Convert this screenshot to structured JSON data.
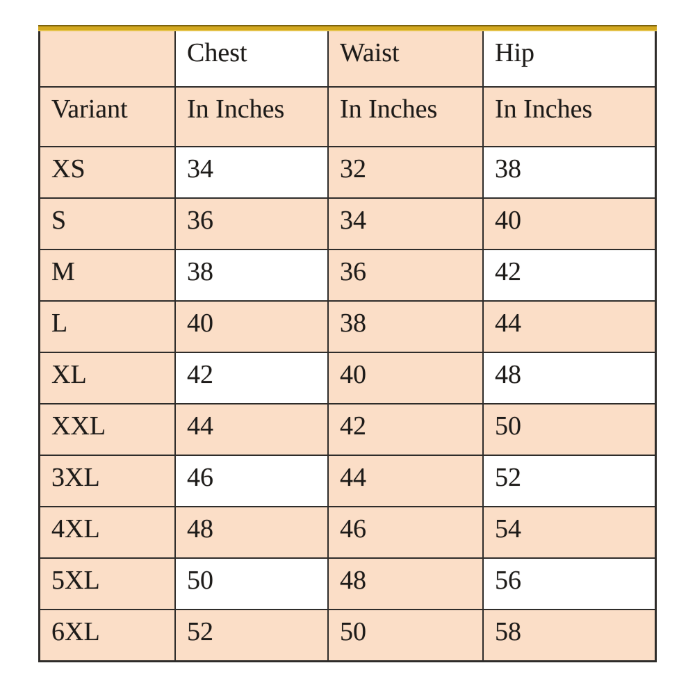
{
  "colors": {
    "peach": "#fbdec7",
    "white": "#ffffff",
    "gold_band": "#d3a81f",
    "gold_band_dark_edge": "#7c630e",
    "border": "#2e2c2a",
    "text": "#1d1b19",
    "page_background": "#ffffff"
  },
  "table": {
    "columns": [
      {
        "key": "variant",
        "header_top": "",
        "header_bottom": "Variant"
      },
      {
        "key": "chest",
        "header_top": "Chest",
        "header_bottom": "In Inches"
      },
      {
        "key": "waist",
        "header_top": "Waist",
        "header_bottom": "In Inches"
      },
      {
        "key": "hip",
        "header_top": "Hip",
        "header_bottom": "In Inches"
      }
    ],
    "unit_label": "In Inches",
    "rows": [
      {
        "variant": "XS",
        "chest": "34",
        "waist": "32",
        "hip": "38"
      },
      {
        "variant": "S",
        "chest": "36",
        "waist": "34",
        "hip": "40"
      },
      {
        "variant": "M",
        "chest": "38",
        "waist": "36",
        "hip": "42"
      },
      {
        "variant": "L",
        "chest": "40",
        "waist": "38",
        "hip": "44"
      },
      {
        "variant": "XL",
        "chest": "42",
        "waist": "40",
        "hip": "48"
      },
      {
        "variant": "XXL",
        "chest": "44",
        "waist": "42",
        "hip": "50"
      },
      {
        "variant": "3XL",
        "chest": "46",
        "waist": "44",
        "hip": "52"
      },
      {
        "variant": "4XL",
        "chest": "48",
        "waist": "46",
        "hip": "54"
      },
      {
        "variant": "5XL",
        "chest": "50",
        "waist": "48",
        "hip": "56"
      },
      {
        "variant": "6XL",
        "chest": "52",
        "waist": "50",
        "hip": "58"
      }
    ]
  }
}
